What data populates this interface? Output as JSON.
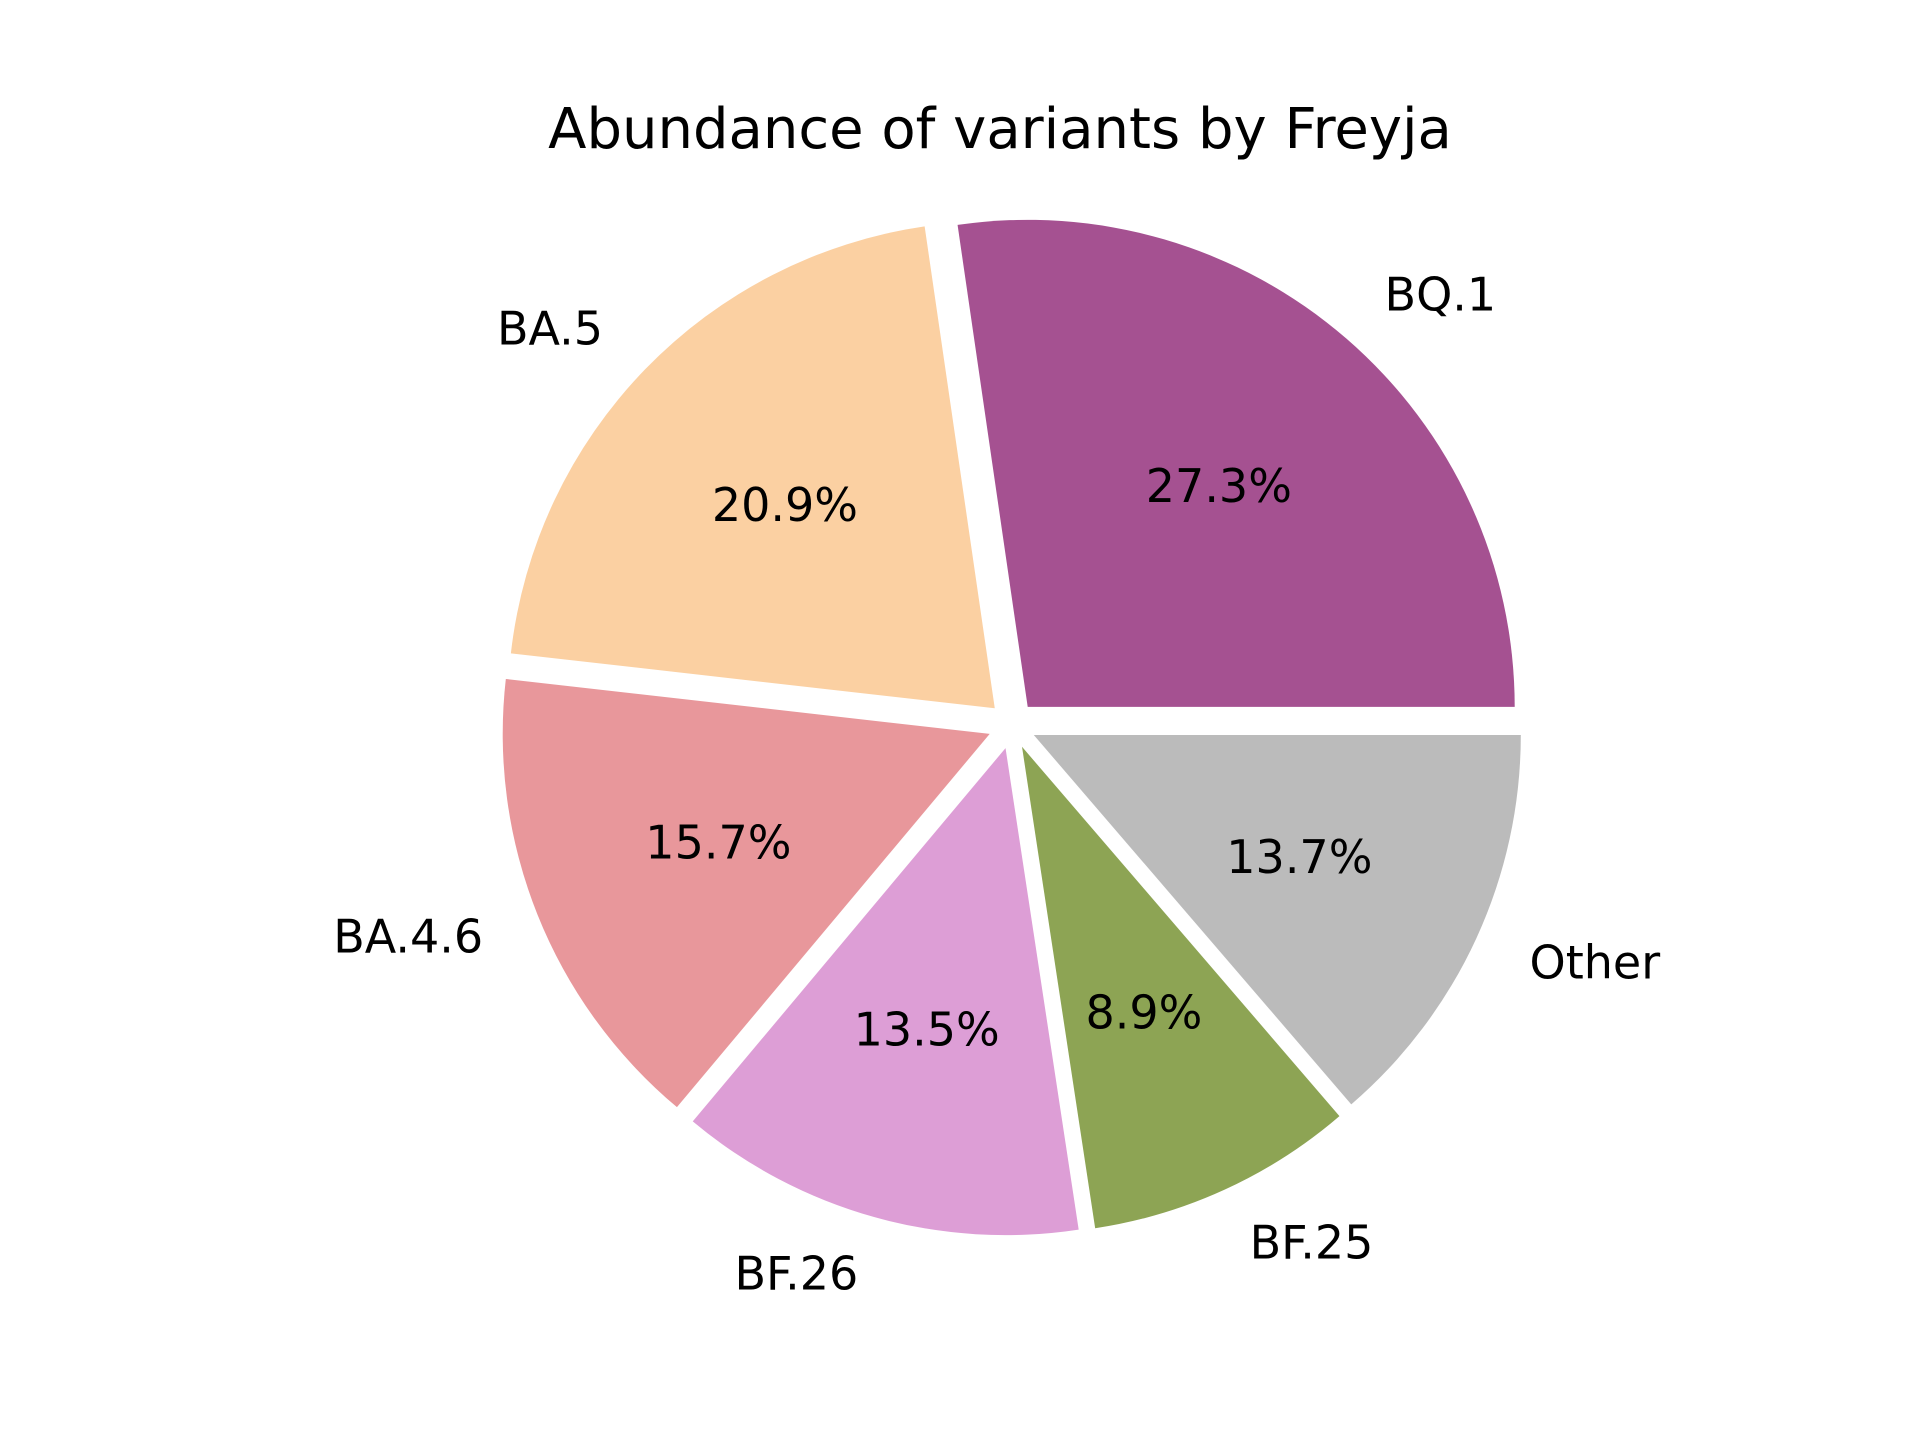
{
  "chart_data": {
    "type": "pie",
    "title": "Abundance of variants by Freyja",
    "categories": [
      "BQ.1",
      "BA.5",
      "BA.4.6",
      "BF.26",
      "BF.25",
      "Other"
    ],
    "values": [
      27.3,
      20.9,
      15.7,
      13.5,
      8.9,
      13.7
    ],
    "value_labels": [
      "27.3%",
      "20.9%",
      "15.7%",
      "13.5%",
      "8.9%",
      "13.7%"
    ],
    "colors": [
      "#a55191",
      "#fbd0a2",
      "#e8979b",
      "#dd9ed6",
      "#8da454",
      "#bbbbbb"
    ],
    "start_angle_deg": 0,
    "direction": "counterclockwise",
    "exploded": true,
    "legend": "none"
  }
}
